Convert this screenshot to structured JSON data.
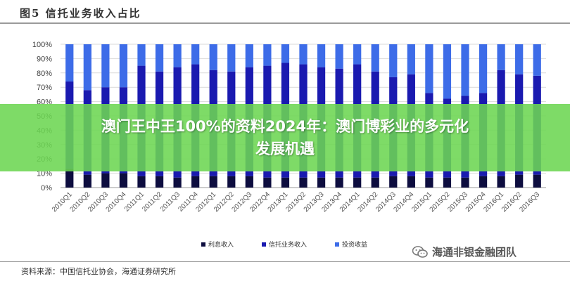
{
  "figure_title": "图5   信托业务收入占比",
  "banner": {
    "line1": "澳门王中王100%的资料2024年：澳门博彩业的多元化",
    "line2": "发展机遇"
  },
  "source": "资料来源：中国信托业协会，海通证券研究所",
  "watermark": "海通非银金融团队",
  "chart_data": {
    "type": "bar",
    "stacked": true,
    "categories": [
      "2010Q1",
      "2010Q2",
      "2010Q3",
      "2010Q4",
      "2011Q1",
      "2011Q2",
      "2011Q3",
      "2011Q4",
      "2012Q1",
      "2012Q2",
      "2012Q3",
      "2012Q4",
      "2013Q1",
      "2013Q2",
      "2013Q3",
      "2013Q4",
      "2014Q1",
      "2014Q2",
      "2014Q3",
      "2014Q4",
      "2015Q1",
      "2015Q2",
      "2015Q3",
      "2015Q4",
      "2016Q1",
      "2016Q2",
      "2016Q3"
    ],
    "y_ticks": [
      "0%",
      "10%",
      "20%",
      "30%",
      "40%",
      "50%",
      "60%",
      "70%",
      "80%",
      "90%",
      "100%"
    ],
    "ylim": [
      0,
      100
    ],
    "grid": true,
    "legend_position": "bottom",
    "series": [
      {
        "name": "利息收入",
        "color": "#0d0d3f",
        "values": [
          13,
          9,
          10,
          10,
          8,
          8,
          7,
          8,
          8,
          8,
          8,
          7,
          7,
          7,
          7,
          7,
          7,
          7,
          8,
          8,
          7,
          7,
          7,
          8,
          8,
          9,
          9
        ]
      },
      {
        "name": "信托业务收入",
        "color": "#1a1ab0",
        "values": [
          61,
          59,
          60,
          60,
          77,
          73,
          77,
          78,
          74,
          73,
          76,
          78,
          80,
          79,
          77,
          76,
          79,
          74,
          69,
          71,
          59,
          55,
          57,
          58,
          74,
          70,
          69
        ]
      },
      {
        "name": "投资收益",
        "color": "#3d6ce8",
        "values": [
          26,
          32,
          30,
          30,
          15,
          19,
          16,
          14,
          18,
          19,
          16,
          15,
          13,
          14,
          16,
          17,
          14,
          19,
          23,
          21,
          34,
          38,
          36,
          34,
          18,
          21,
          22
        ]
      }
    ]
  }
}
